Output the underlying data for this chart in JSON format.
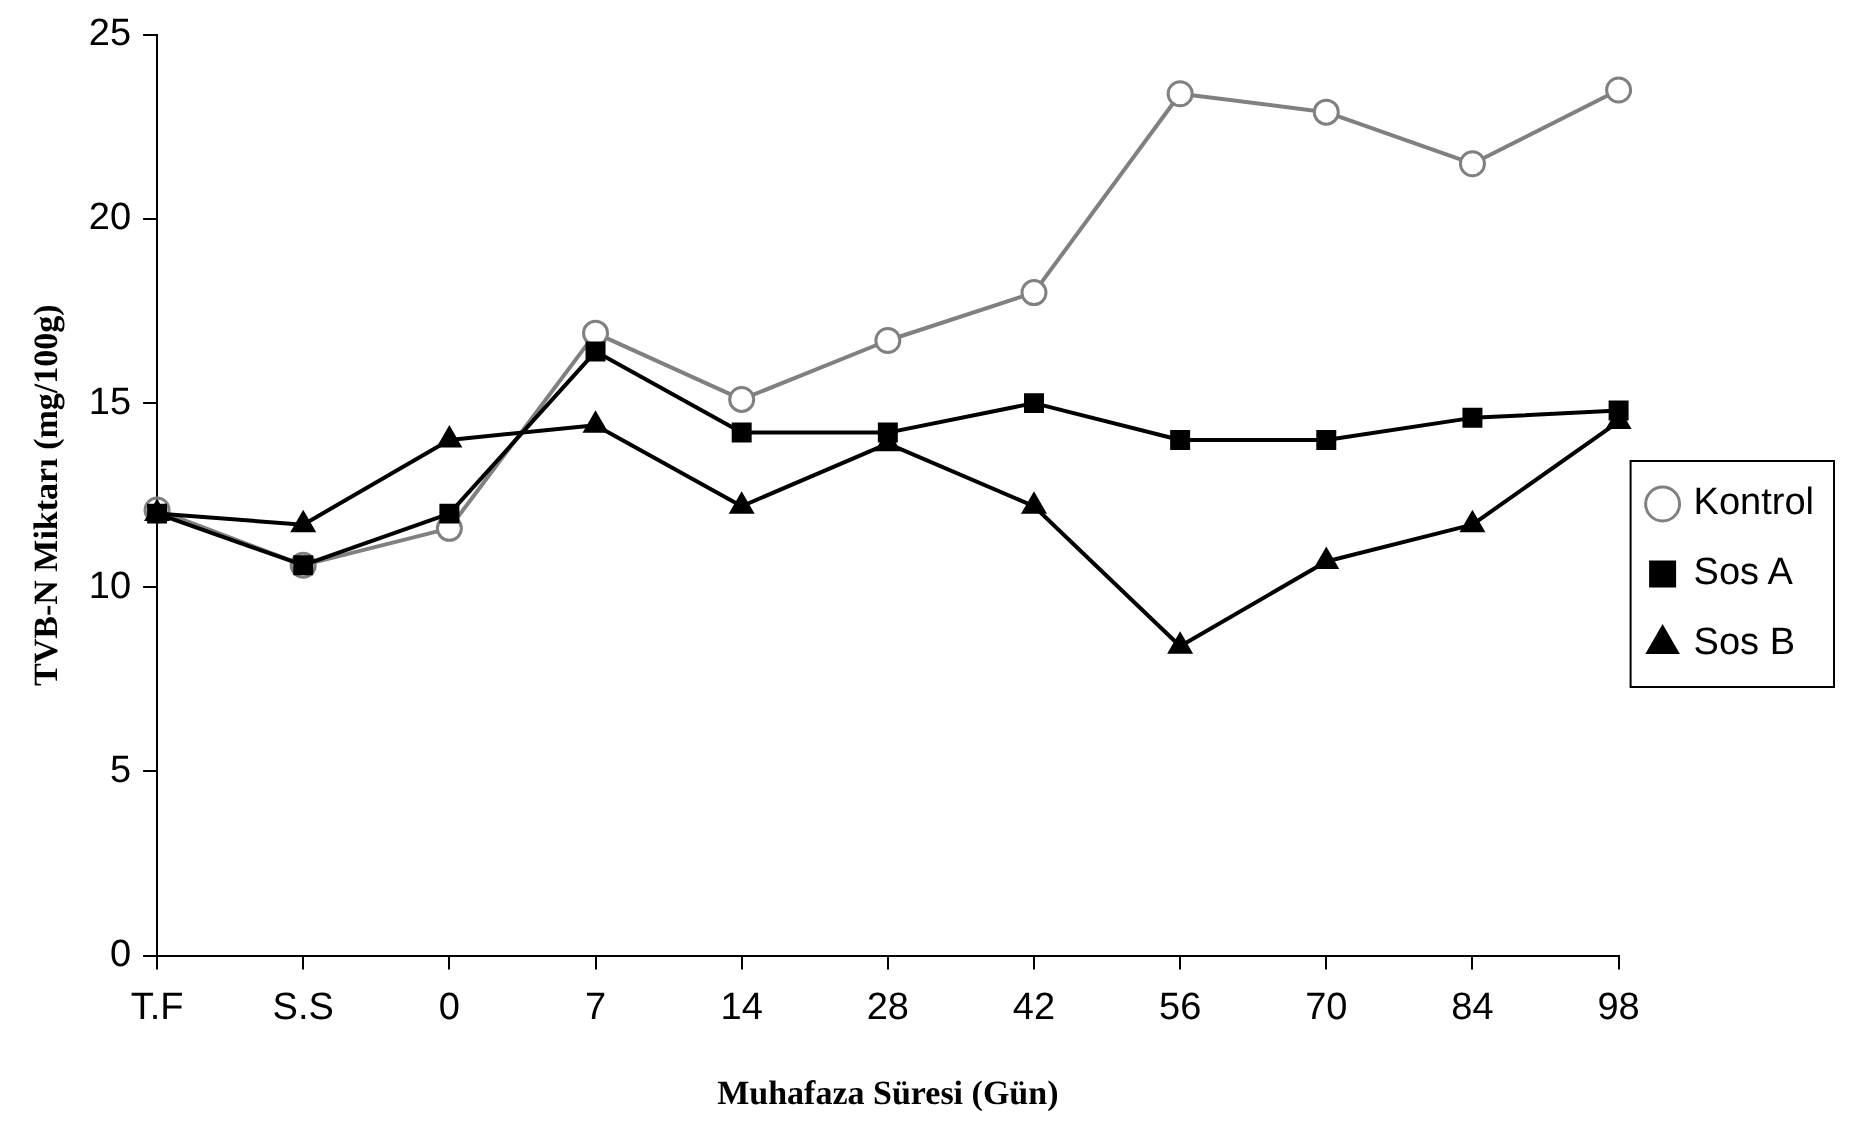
{
  "chart_data": {
    "type": "line",
    "xlabel": "Muhafaza Süresi (Gün)",
    "ylabel": "TVB-N Miktarı (mg/100g)",
    "categories": [
      "T.F",
      "S.S",
      "0",
      "7",
      "14",
      "28",
      "42",
      "56",
      "70",
      "84",
      "98"
    ],
    "ylim": [
      0,
      25
    ],
    "yticks": [
      0,
      5,
      10,
      15,
      20,
      25
    ],
    "grid": false,
    "legend": "right",
    "series": [
      {
        "name": "Kontrol",
        "color": "#808080",
        "marker": "circle",
        "values": [
          12.1,
          10.6,
          11.6,
          16.9,
          15.1,
          16.7,
          18.0,
          23.4,
          22.9,
          21.5,
          23.5
        ]
      },
      {
        "name": "Sos A",
        "color": "#000000",
        "marker": "square",
        "values": [
          12.0,
          10.6,
          12.0,
          16.4,
          14.2,
          14.2,
          15.0,
          14.0,
          14.0,
          14.6,
          14.8
        ]
      },
      {
        "name": "Sos B",
        "color": "#000000",
        "marker": "triangle",
        "values": [
          12.0,
          11.7,
          14.0,
          14.4,
          12.2,
          13.9,
          12.2,
          8.4,
          10.7,
          11.7,
          14.5
        ]
      }
    ]
  }
}
